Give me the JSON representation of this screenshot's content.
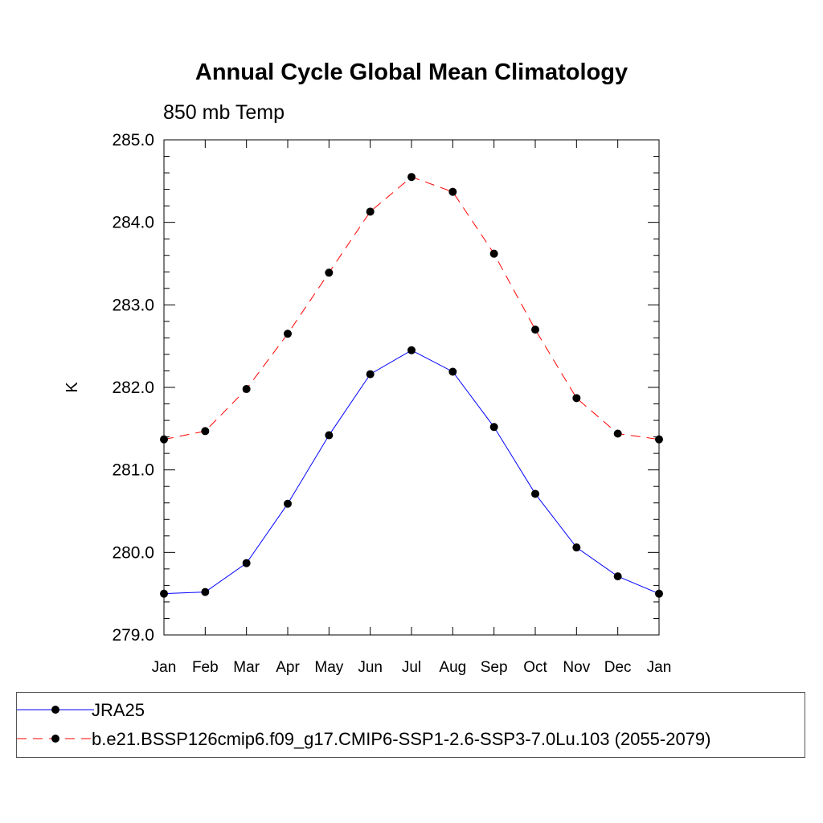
{
  "chart_data": {
    "type": "line",
    "title": "Annual Cycle Global Mean Climatology",
    "subtitle": "850 mb Temp",
    "xlabel": "",
    "ylabel": "K",
    "categories": [
      "Jan",
      "Feb",
      "Mar",
      "Apr",
      "May",
      "Jun",
      "Jul",
      "Aug",
      "Sep",
      "Oct",
      "Nov",
      "Dec",
      "Jan"
    ],
    "ylim": [
      279.0,
      285.0
    ],
    "yticks": [
      "279.0",
      "280.0",
      "281.0",
      "282.0",
      "283.0",
      "284.0",
      "285.0"
    ],
    "grid": false,
    "legend": "bottom",
    "series": [
      {
        "name": "JRA25",
        "color": "#0000ff",
        "dash": "solid",
        "marker": "filled-circle",
        "values": [
          279.5,
          279.52,
          279.87,
          280.59,
          281.42,
          282.16,
          282.45,
          282.19,
          281.52,
          280.71,
          280.06,
          279.71,
          279.5
        ]
      },
      {
        "name": "b.e21.BSSP126cmip6.f09_g17.CMIP6-SSP1-2.6-SSP3-7.0Lu.103 (2055-2079)",
        "color": "#ff0000",
        "dash": "dashed",
        "marker": "filled-circle",
        "values": [
          281.37,
          281.47,
          281.98,
          282.65,
          283.39,
          284.13,
          284.55,
          284.37,
          283.62,
          282.7,
          281.87,
          281.44,
          281.37
        ]
      }
    ]
  }
}
